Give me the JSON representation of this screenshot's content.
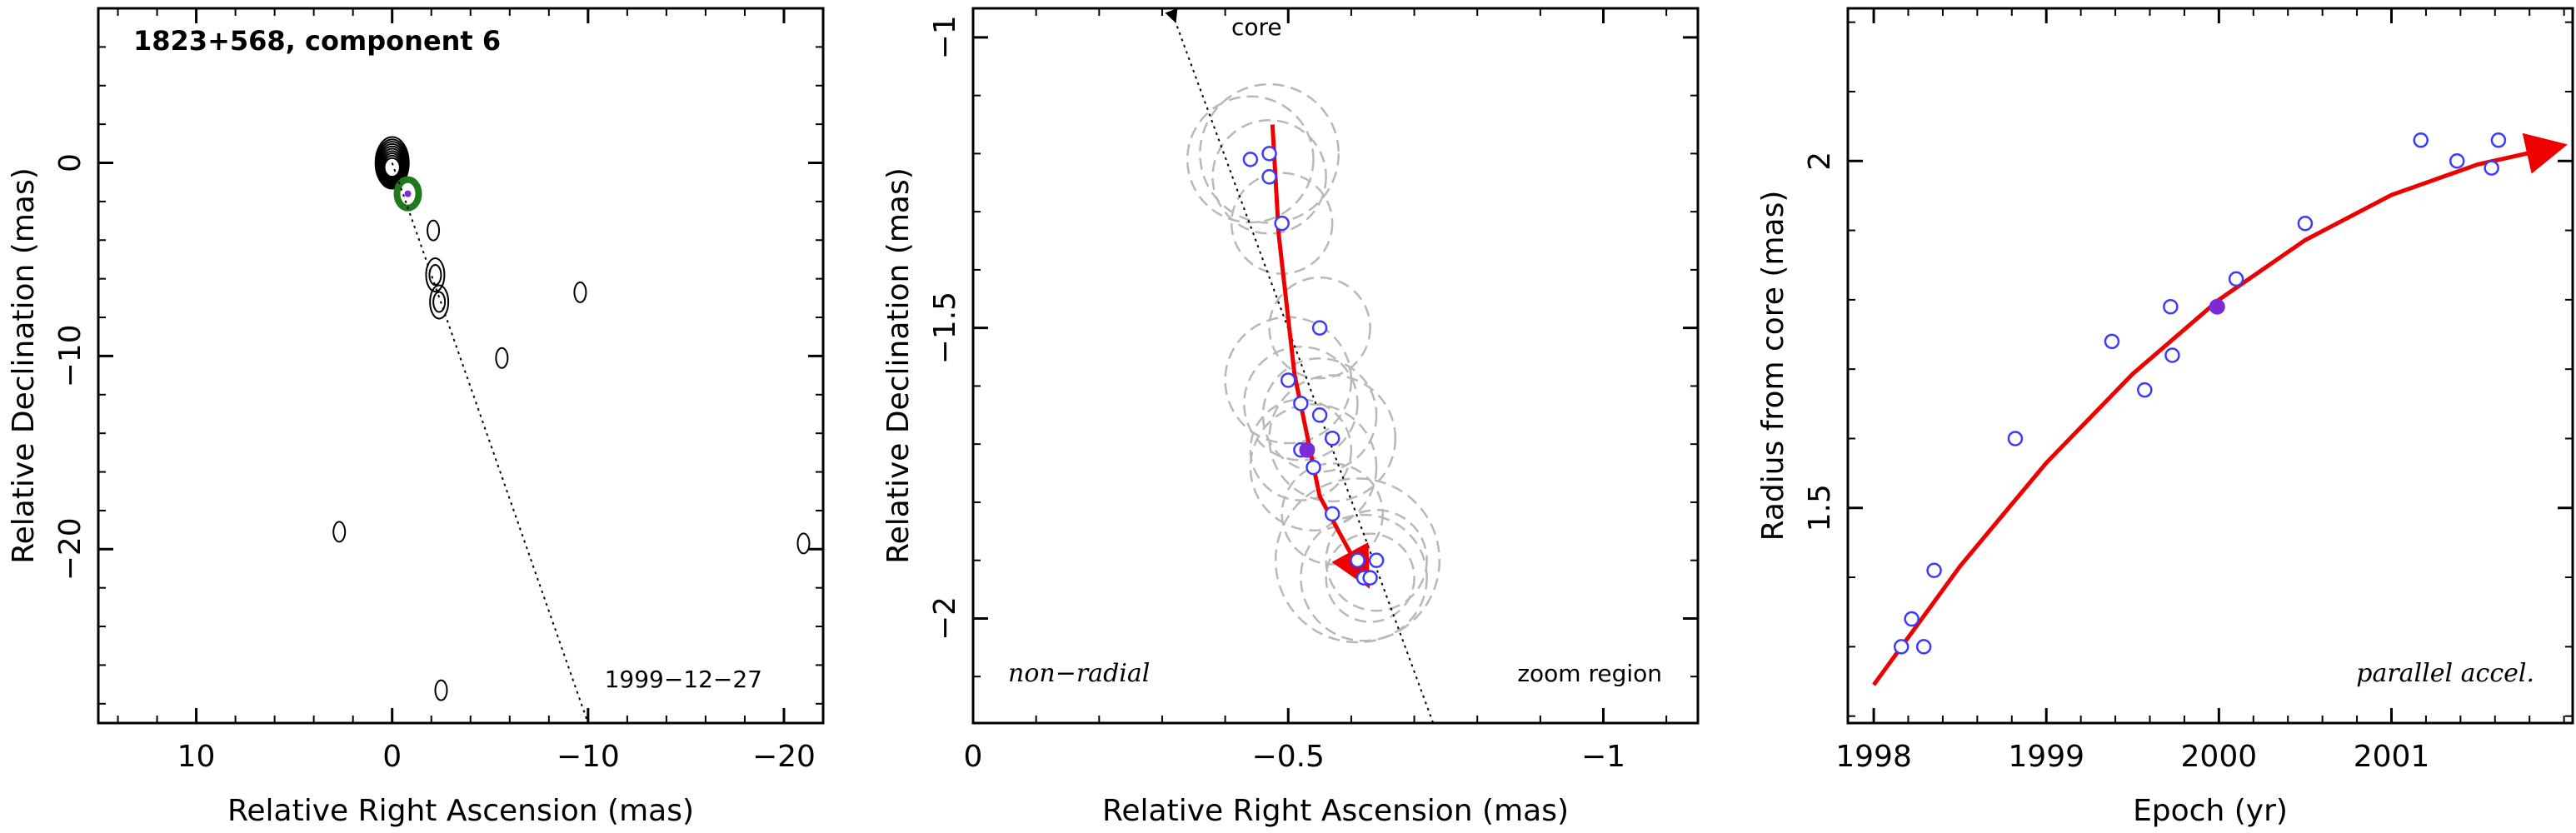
{
  "chart_data": [
    {
      "type": "contour",
      "title": "1823+568, component 6",
      "xlabel": "Relative Right Ascension (mas)",
      "ylabel": "Relative Declination (mas)",
      "xlim": [
        15,
        -22
      ],
      "ylim": [
        -29,
        8
      ],
      "xticks": [
        10,
        0,
        -10,
        -20
      ],
      "xtick_labels": [
        "10",
        "0",
        "−10",
        "−20"
      ],
      "yticks": [
        0,
        -10,
        -20
      ],
      "ytick_labels": [
        "0",
        "−10",
        "−20"
      ],
      "annotation": "1999−12−27",
      "jet_direction_line": [
        [
          0,
          0
        ],
        [
          -10,
          -29
        ]
      ],
      "core": [
        0,
        0
      ],
      "highlight_component": [
        -0.8,
        -1.6
      ],
      "contour_blobs": [
        {
          "x": 0,
          "y": 0,
          "levels": 10
        },
        {
          "x": -2.1,
          "y": -3.5,
          "levels": 1
        },
        {
          "x": -2.2,
          "y": -5.8,
          "levels": 2
        },
        {
          "x": -2.4,
          "y": -7.2,
          "levels": 2
        },
        {
          "x": -9.6,
          "y": -6.7,
          "levels": 1
        },
        {
          "x": -5.6,
          "y": -10.1,
          "levels": 1
        },
        {
          "x": 2.7,
          "y": -19.1,
          "levels": 1
        },
        {
          "x": -21,
          "y": -19.7,
          "levels": 1
        },
        {
          "x": -2.5,
          "y": -27.3,
          "levels": 1
        }
      ]
    },
    {
      "type": "scatter",
      "xlabel": "Relative Right Ascension (mas)",
      "ylabel": "Relative Declination (mas)",
      "xlim": [
        0.0,
        -1.15
      ],
      "ylim": [
        -2.18,
        -0.95
      ],
      "xticks": [
        0,
        -0.5,
        -1
      ],
      "xtick_labels": [
        "0",
        "−0.5",
        "−1"
      ],
      "yticks": [
        -1,
        -1.5,
        -2
      ],
      "ytick_labels": [
        "−1",
        "−1.5",
        "−2"
      ],
      "annotations": {
        "left": "non−radial",
        "right": "zoom region",
        "core_label": "core"
      },
      "core_direction_line": [
        [
          -0.32,
          -0.97
        ],
        [
          -0.73,
          -2.18
        ]
      ],
      "points": [
        {
          "x": -0.44,
          "y": -1.21
        },
        {
          "x": -0.47,
          "y": -1.2
        },
        {
          "x": -0.47,
          "y": -1.24
        },
        {
          "x": -0.49,
          "y": -1.32
        },
        {
          "x": -0.55,
          "y": -1.5
        },
        {
          "x": -0.5,
          "y": -1.59
        },
        {
          "x": -0.52,
          "y": -1.63
        },
        {
          "x": -0.55,
          "y": -1.65
        },
        {
          "x": -0.57,
          "y": -1.69
        },
        {
          "x": -0.52,
          "y": -1.71
        },
        {
          "x": -0.54,
          "y": -1.74
        },
        {
          "x": -0.57,
          "y": -1.82
        },
        {
          "x": -0.61,
          "y": -1.9
        },
        {
          "x": -0.64,
          "y": -1.9
        },
        {
          "x": -0.62,
          "y": -1.93
        },
        {
          "x": -0.63,
          "y": -1.93
        }
      ],
      "filled_point": {
        "x": -0.53,
        "y": -1.71
      },
      "error_circles": [
        {
          "x": -0.44,
          "y": -1.21,
          "r": 0.1
        },
        {
          "x": -0.47,
          "y": -1.2,
          "r": 0.11
        },
        {
          "x": -0.47,
          "y": -1.24,
          "r": 0.09
        },
        {
          "x": -0.49,
          "y": -1.32,
          "r": 0.08
        },
        {
          "x": -0.55,
          "y": -1.5,
          "r": 0.08
        },
        {
          "x": -0.5,
          "y": -1.59,
          "r": 0.1
        },
        {
          "x": -0.52,
          "y": -1.63,
          "r": 0.09
        },
        {
          "x": -0.55,
          "y": -1.65,
          "r": 0.09
        },
        {
          "x": -0.57,
          "y": -1.69,
          "r": 0.1
        },
        {
          "x": -0.52,
          "y": -1.71,
          "r": 0.08
        },
        {
          "x": -0.54,
          "y": -1.74,
          "r": 0.1
        },
        {
          "x": -0.57,
          "y": -1.82,
          "r": 0.08
        },
        {
          "x": -0.61,
          "y": -1.9,
          "r": 0.13
        },
        {
          "x": -0.64,
          "y": -1.9,
          "r": 0.08
        },
        {
          "x": -0.62,
          "y": -1.93,
          "r": 0.1
        },
        {
          "x": -0.63,
          "y": -1.93,
          "r": 0.07
        }
      ],
      "fit_track": [
        [
          -0.475,
          -1.15
        ],
        [
          -0.485,
          -1.34
        ],
        [
          -0.51,
          -1.58
        ],
        [
          -0.55,
          -1.79
        ],
        [
          -0.62,
          -1.93
        ]
      ]
    },
    {
      "type": "scatter",
      "xlabel": "Epoch (yr)",
      "ylabel": "Radius from core (mas)",
      "xlim": [
        1997.85,
        2002.05
      ],
      "ylim": [
        1.19,
        2.22
      ],
      "xticks": [
        1998,
        1999,
        2000,
        2001
      ],
      "xtick_labels": [
        "1998",
        "1999",
        "2000",
        "2001"
      ],
      "yticks": [
        1.5,
        2.0
      ],
      "ytick_labels": [
        "1.5",
        "2"
      ],
      "annotation": "parallel accel.",
      "points": [
        {
          "x": 1998.16,
          "y": 1.3
        },
        {
          "x": 1998.22,
          "y": 1.34
        },
        {
          "x": 1998.29,
          "y": 1.3
        },
        {
          "x": 1998.35,
          "y": 1.41
        },
        {
          "x": 1998.82,
          "y": 1.6
        },
        {
          "x": 1999.38,
          "y": 1.74
        },
        {
          "x": 1999.57,
          "y": 1.67
        },
        {
          "x": 1999.72,
          "y": 1.79
        },
        {
          "x": 1999.73,
          "y": 1.72
        },
        {
          "x": 2000.1,
          "y": 1.83
        },
        {
          "x": 2000.5,
          "y": 1.91
        },
        {
          "x": 2001.17,
          "y": 2.03
        },
        {
          "x": 2001.38,
          "y": 2.0
        },
        {
          "x": 2001.58,
          "y": 1.99
        },
        {
          "x": 2001.62,
          "y": 2.03
        }
      ],
      "filled_point": {
        "x": 1999.99,
        "y": 1.79
      },
      "fit_curve": {
        "x": [
          1998.0,
          1998.5,
          1999.0,
          1999.5,
          2000.0,
          2000.5,
          2001.0,
          2001.5,
          2001.95
        ],
        "y": [
          1.245,
          1.416,
          1.565,
          1.693,
          1.8,
          1.886,
          1.951,
          1.995,
          2.02
        ]
      }
    }
  ],
  "colors": {
    "points": "#3b3bff",
    "filled_point": "#7a2bd6",
    "fit": "#ee0000",
    "circles": "#b8b8b8",
    "contour": "#000000",
    "highlight": "#1f7a1f"
  }
}
